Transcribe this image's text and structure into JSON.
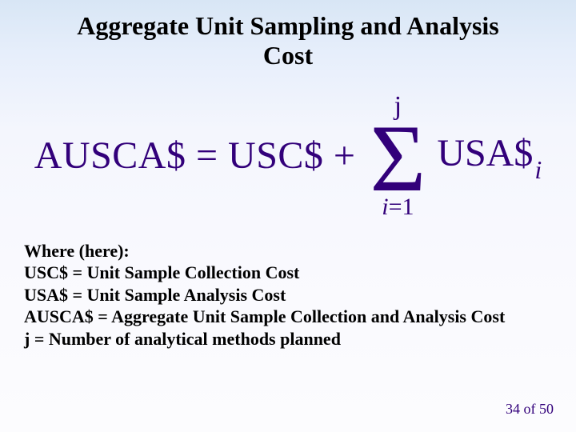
{
  "title_line1": "Aggregate Unit Sampling and Analysis",
  "title_line2": "Cost",
  "formula": {
    "lhs": "AUSCA$ = USC$ +",
    "sum_upper": "j",
    "sigma": "Σ",
    "sum_lower_i": "i",
    "sum_lower_eq": "=",
    "sum_lower_one": "1",
    "rhs_base": "USA$",
    "rhs_sub": "i"
  },
  "defs": {
    "heading": "Where (here):",
    "l1": "USC$ = Unit Sample Collection Cost",
    "l2": "USA$ = Unit Sample Analysis Cost",
    "l3": "AUSCA$ = Aggregate Unit Sample Collection and Analysis Cost",
    "l4": "j = Number of analytical methods planned"
  },
  "pager": {
    "current": "34",
    "of": " of ",
    "total": "50"
  },
  "colors": {
    "formula_color": "#32007a",
    "text_color": "#000000",
    "bg_top": "#d8e6f5",
    "bg_bottom": "#fcfcfe"
  }
}
